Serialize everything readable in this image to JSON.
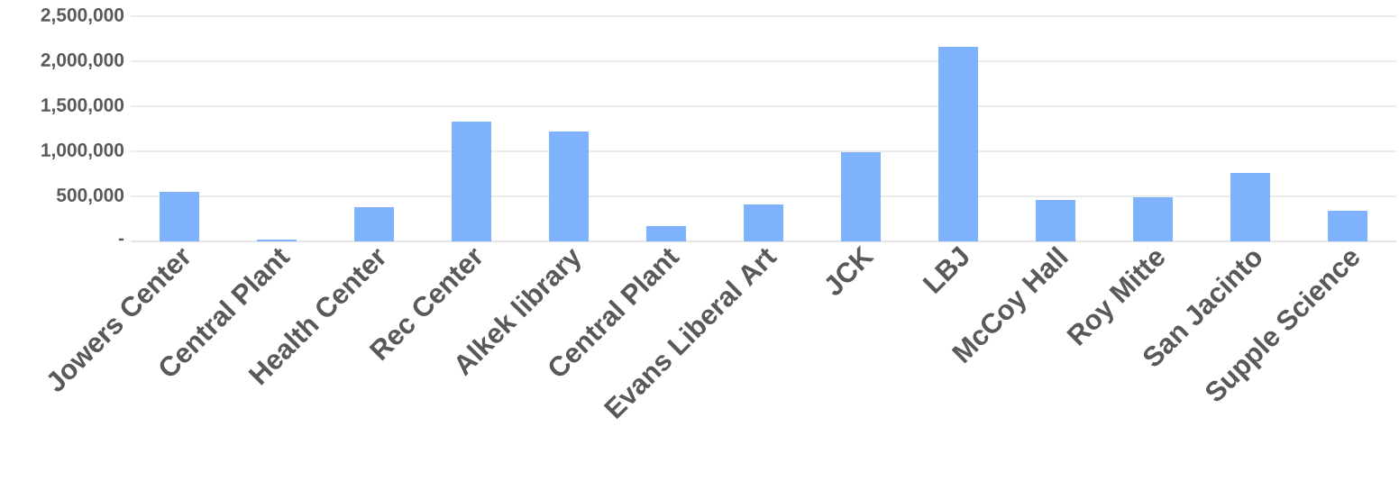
{
  "chart_data": {
    "type": "bar",
    "categories": [
      "Jowers Center",
      "Central Plant",
      "Health Center",
      "Rec Center",
      "Alkek library",
      "Central Plant",
      "Evans Liberal Art",
      "JCK",
      "LBJ",
      "McCoy Hall",
      "Roy Mitte",
      "San Jacinto",
      "Supple Science"
    ],
    "values": [
      550000,
      20000,
      380000,
      1330000,
      1220000,
      170000,
      410000,
      990000,
      2160000,
      460000,
      490000,
      760000,
      340000
    ],
    "color": "#7fb2fd",
    "ylim": [
      0,
      2500000
    ],
    "yticks": [
      {
        "value": 0,
        "label": "-"
      },
      {
        "value": 500000,
        "label": "500,000"
      },
      {
        "value": 1000000,
        "label": "1,000,000"
      },
      {
        "value": 1500000,
        "label": "1,500,000"
      },
      {
        "value": 2000000,
        "label": "2,000,000"
      },
      {
        "value": 2500000,
        "label": "2,500,000"
      }
    ],
    "grid": "y"
  }
}
